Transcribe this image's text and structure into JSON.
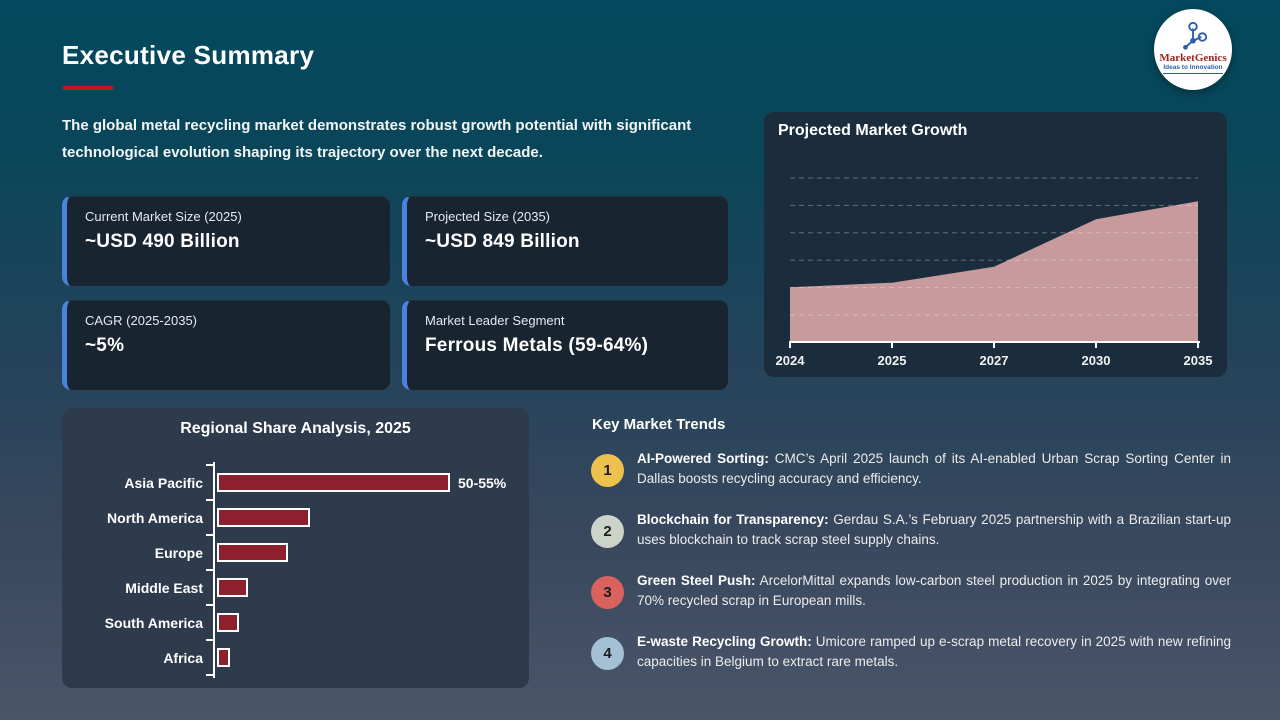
{
  "slide": {
    "title": "Executive Summary",
    "intro": "The global metal recycling market demonstrates robust growth potential with significant technological evolution shaping its trajectory over the next decade."
  },
  "logo": {
    "brand": "MarketGenics",
    "tagline": "Ideas to Innovation"
  },
  "stat_cards": [
    {
      "label": "Current Market Size (2025)",
      "value": "~USD 490 Billion"
    },
    {
      "label": "Projected Size (2035)",
      "value": "~USD 849 Billion"
    },
    {
      "label": "CAGR (2025-2035)",
      "value": "~5%"
    },
    {
      "label": "Market Leader Segment",
      "value": "Ferrous Metals (59-64%)"
    }
  ],
  "trends": {
    "title": "Key Market Trends",
    "items": [
      {
        "number": "1",
        "color": "#eec04e",
        "title": "AI-Powered Sorting:",
        "text": "CMC’s April 2025 launch of its AI-enabled Urban Scrap Sorting Center in Dallas boosts recycling accuracy and efficiency."
      },
      {
        "number": "2",
        "color": "#ccd3c8",
        "title": "Blockchain for Transparency:",
        "text": "Gerdau S.A.’s February 2025 partnership with a Brazilian start-up uses blockchain to track scrap steel supply chains."
      },
      {
        "number": "3",
        "color": "#d9625f",
        "title": "Green Steel Push:",
        "text": "ArcelorMittal expands low-carbon steel production in 2025 by integrating over 70% recycled scrap in European mills."
      },
      {
        "number": "4",
        "color": "#a3c0d4",
        "title": "E-waste Recycling Growth:",
        "text": "Umicore ramped up e-scrap metal recovery in 2025 with new refining capacities in Belgium to extract rare metals."
      }
    ]
  },
  "chart_data": [
    {
      "type": "area",
      "title": "Projected Market Growth",
      "x": [
        "2024",
        "2025",
        "2027",
        "2030",
        "2035"
      ],
      "values": [
        470,
        490,
        560,
        770,
        849
      ],
      "unit": "USD Billion (estimated from slide anchors 490 in 2025, 849 in 2035; no y-axis labels shown)",
      "ylim": [
        228,
        952
      ],
      "grid": true,
      "legend": false,
      "color": "#c79b9e"
    },
    {
      "type": "bar",
      "orientation": "horizontal",
      "title": "Regional Share Analysis, 2025",
      "categories": [
        "Asia Pacific",
        "North America",
        "Europe",
        "Middle East",
        "South America",
        "Africa"
      ],
      "values": [
        52.5,
        21,
        16,
        7,
        5,
        3
      ],
      "data_labels": [
        "50-55%",
        "",
        "",
        "",
        "",
        ""
      ],
      "unit": "%",
      "xlabel": "",
      "ylabel": "",
      "xlim": [
        0,
        60
      ],
      "bar_color": "#8e1f2d"
    }
  ],
  "colors": {
    "accent_blue": "#4a82dd",
    "title_underline": "#c4161c",
    "area_fill": "#c79b9e",
    "bar_fill": "#8e1f2d",
    "background_top": "#03485d",
    "background_bottom": "#4a5569"
  }
}
